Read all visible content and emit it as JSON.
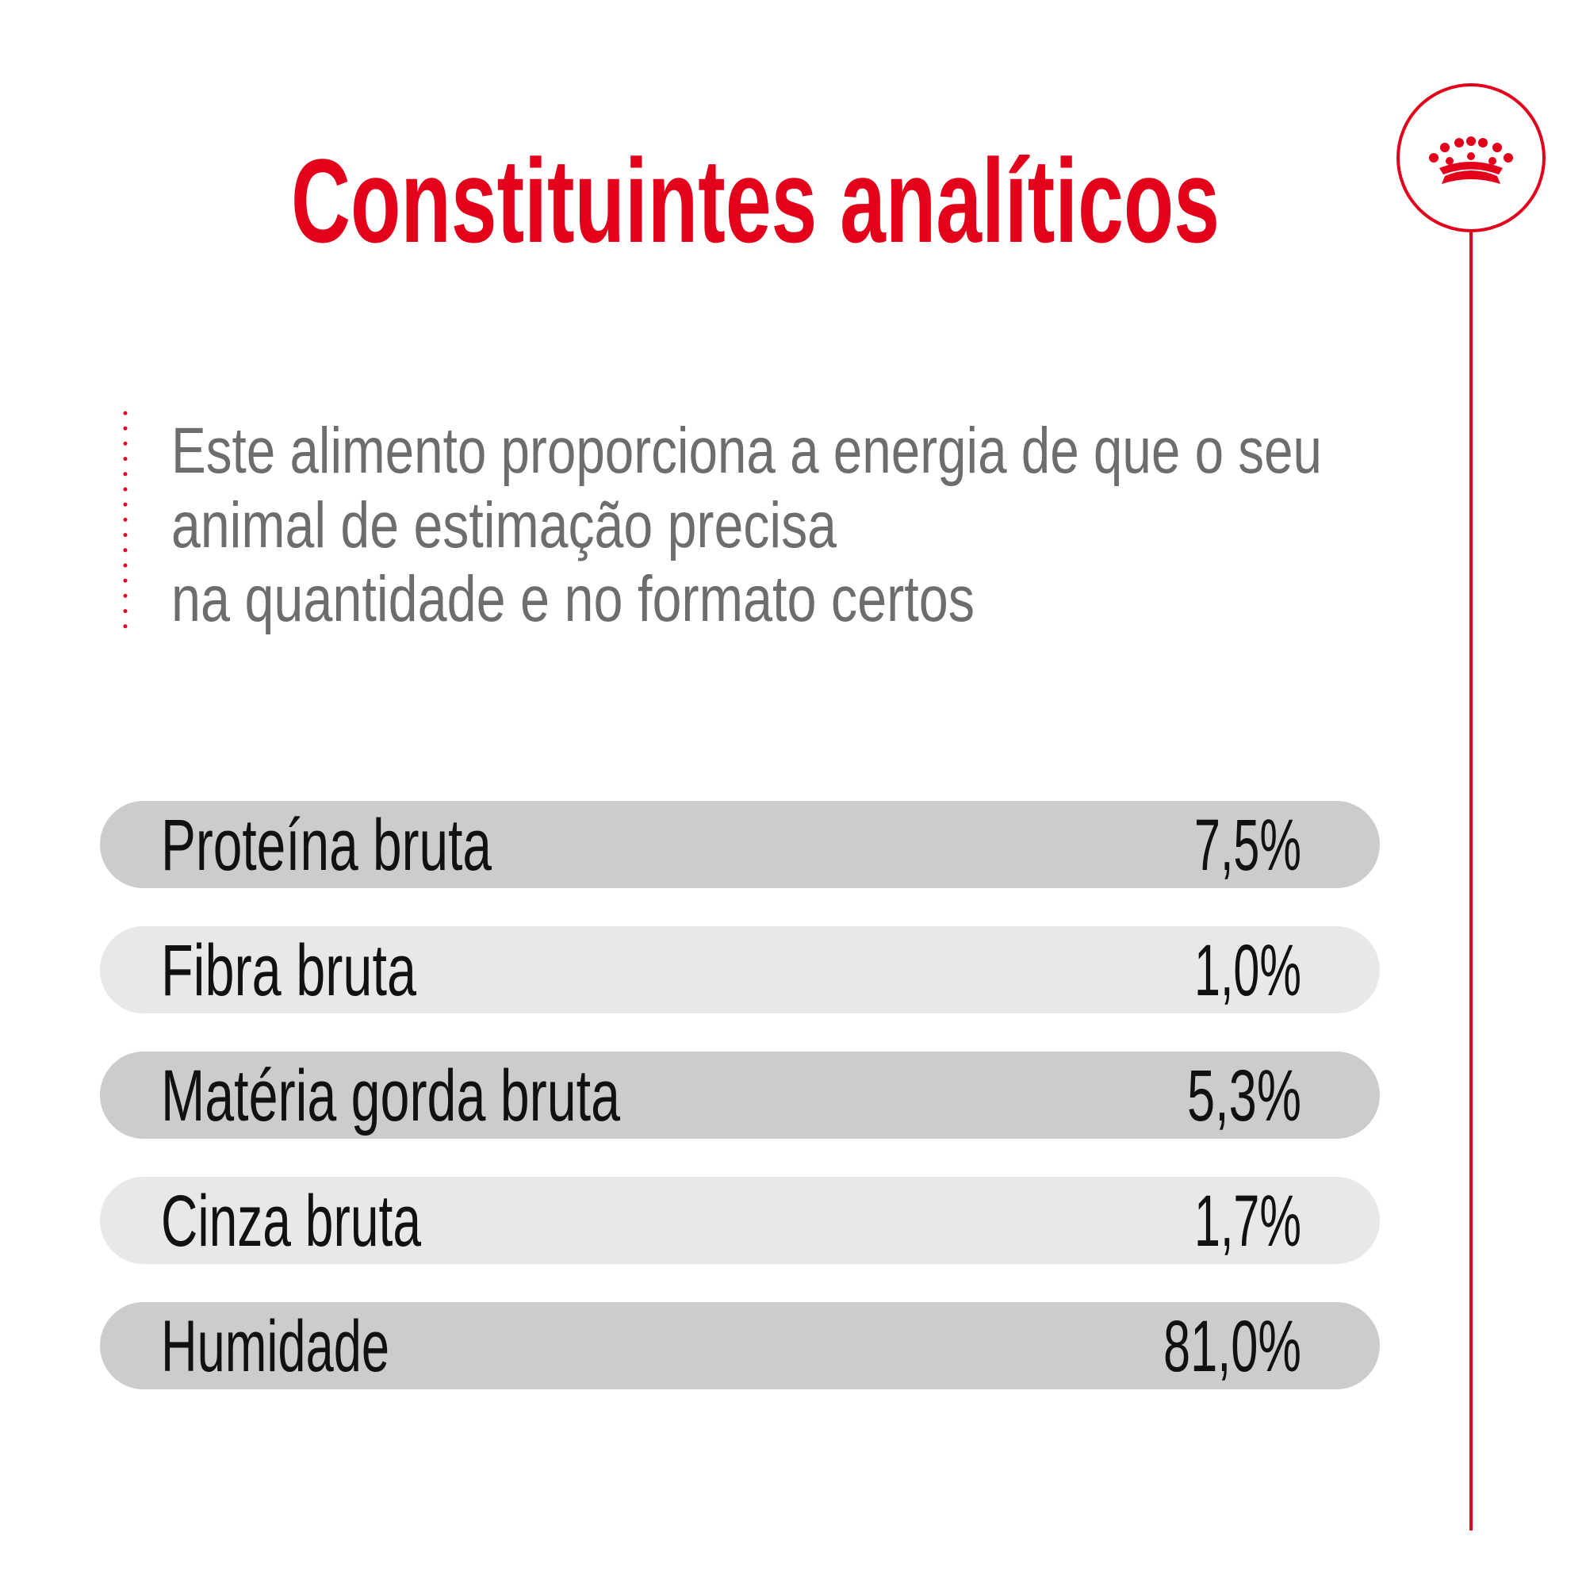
{
  "header": {
    "title": "Constituintes analíticos"
  },
  "description": {
    "lines": [
      "Este alimento proporciona a energia de que o seu",
      "animal de estimação precisa",
      "na quantidade e no formato certos"
    ]
  },
  "table": {
    "rows": [
      [
        "Proteína bruta",
        "7,5%"
      ],
      [
        "Fibra bruta",
        "1,0%"
      ],
      [
        "Matéria gorda bruta",
        "5,3%"
      ],
      [
        "Cinza bruta",
        "1,7%"
      ],
      [
        "Humidade",
        "81,0%"
      ]
    ]
  }
}
